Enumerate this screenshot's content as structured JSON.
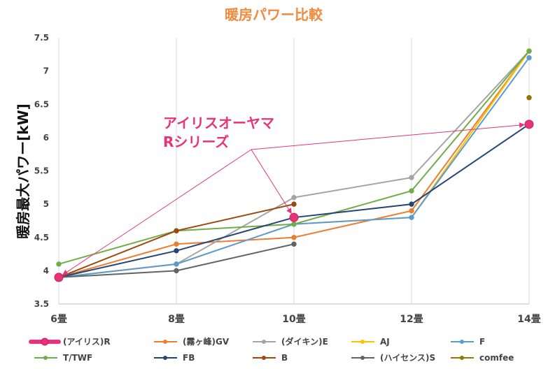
{
  "chart_data": {
    "type": "line",
    "title": "暖房パワー比較",
    "ylabel": "暖房最大パワー[kW]",
    "xlabel": "",
    "x": [
      "6畳",
      "8畳",
      "10畳",
      "12畳",
      "14畳"
    ],
    "ylim": [
      3.5,
      7.5
    ],
    "yticks": [
      "3.5",
      "4",
      "4.5",
      "5",
      "5.5",
      "6",
      "6.5",
      "7",
      "7.5"
    ],
    "grid": true,
    "legend_position": "bottom",
    "annotation": {
      "lines": [
        "アイリスオーヤマ",
        "Rシリーズ"
      ],
      "color": "#e8327a",
      "targets": [
        {
          "x": "6畳",
          "y": 3.9
        },
        {
          "x": "10畳",
          "y": 4.8
        },
        {
          "x": "14畳",
          "y": 6.2
        }
      ]
    },
    "series": [
      {
        "name": "(アイリス)R",
        "color": "#e8327a",
        "highlight": true,
        "values": [
          3.9,
          null,
          4.8,
          null,
          6.2
        ]
      },
      {
        "name": "(霧ヶ峰)GV",
        "color": "#ed7d31",
        "values": [
          3.9,
          4.4,
          4.5,
          4.9,
          7.3
        ]
      },
      {
        "name": "(ダイキン)E",
        "color": "#a5a5a5",
        "values": [
          3.9,
          4.1,
          5.1,
          5.4,
          7.3
        ]
      },
      {
        "name": "AJ",
        "color": "#ffc000",
        "values": [
          3.9,
          4.1,
          4.7,
          4.8,
          7.3
        ]
      },
      {
        "name": "F",
        "color": "#5b9bd5",
        "values": [
          3.9,
          4.1,
          4.7,
          4.8,
          7.2
        ]
      },
      {
        "name": "T/TWF",
        "color": "#70ad47",
        "values": [
          4.1,
          4.6,
          4.7,
          5.2,
          7.3
        ]
      },
      {
        "name": "FB",
        "color": "#264478",
        "values": [
          3.9,
          4.3,
          4.8,
          5.0,
          6.2
        ]
      },
      {
        "name": "B",
        "color": "#9e480e",
        "values": [
          3.9,
          4.6,
          5.0,
          null,
          null
        ]
      },
      {
        "name": "(ハイセンス)S",
        "color": "#636363",
        "values": [
          3.9,
          4.0,
          4.4,
          null,
          null
        ]
      },
      {
        "name": "comfee",
        "color": "#997300",
        "values": [
          null,
          null,
          null,
          null,
          6.6
        ]
      }
    ]
  }
}
